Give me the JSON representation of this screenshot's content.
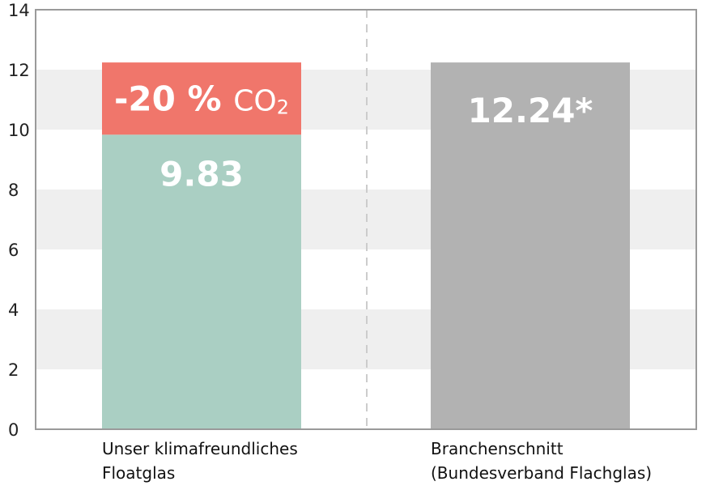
{
  "chart_data": {
    "type": "bar",
    "stacked": true,
    "ylim": [
      0,
      14
    ],
    "yticks": [
      0,
      2,
      4,
      6,
      8,
      10,
      12,
      14
    ],
    "grid": "alternating horizontal bands",
    "categories": [
      [
        "Unser klimafreundliches",
        "Floatglas"
      ],
      [
        "Branchenschnitt",
        "(Bundesverband Flachglas)"
      ]
    ],
    "bars": [
      {
        "segments": [
          {
            "value": 9.83,
            "color": "#aacfc3",
            "label": "9.83"
          },
          {
            "value": 2.41,
            "color": "#f0766b",
            "label": "-20 %",
            "label_unit": "CO",
            "label_sub": "2"
          }
        ]
      },
      {
        "segments": [
          {
            "value": 12.24,
            "color": "#b2b2b2",
            "label": "12.24*"
          }
        ]
      }
    ]
  }
}
